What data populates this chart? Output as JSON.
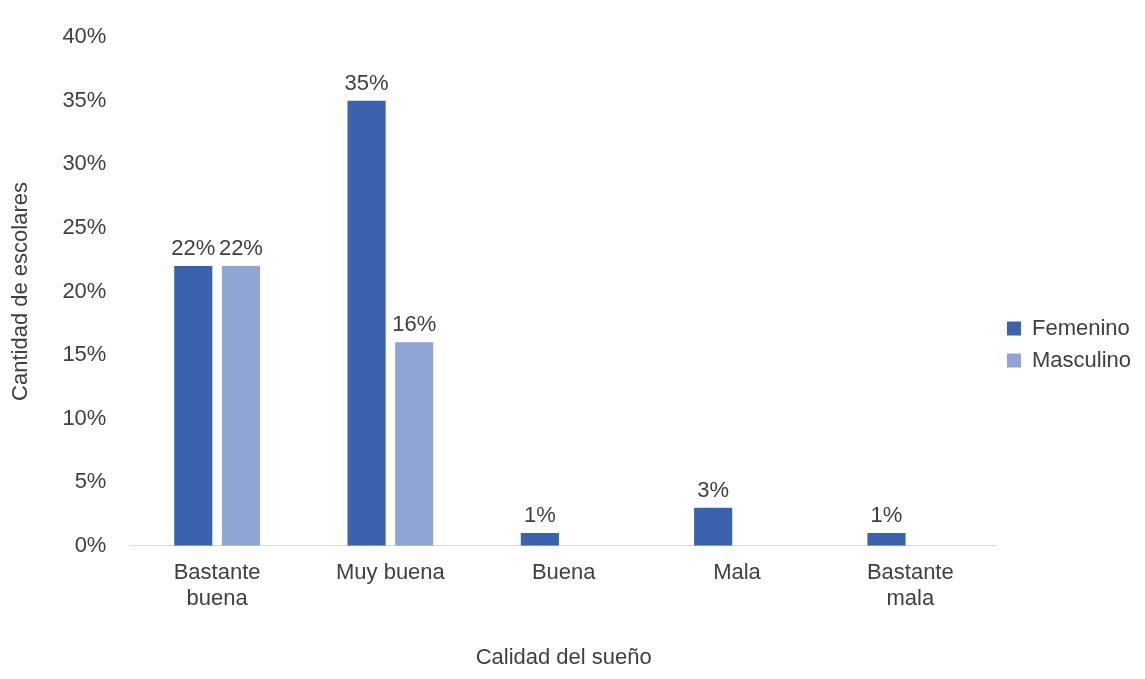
{
  "chart_data": {
    "type": "bar",
    "xlabel": "Calidad del sueño",
    "ylabel": "Cantidad de escolares",
    "categories": [
      "Bastante buena",
      "Muy buena",
      "Buena",
      "Mala",
      "Bastante mala"
    ],
    "series": [
      {
        "name": "Femenino",
        "color": "#3a62ad",
        "values": [
          22,
          35,
          1,
          3,
          1
        ],
        "value_labels": [
          "22%",
          "35%",
          "1%",
          "3%",
          "1%"
        ]
      },
      {
        "name": "Masculino",
        "color": "#8fa5d4",
        "values": [
          22,
          16,
          null,
          null,
          null
        ],
        "value_labels": [
          "22%",
          "16%",
          null,
          null,
          null
        ]
      }
    ],
    "ylim": [
      0,
      40
    ],
    "yticks": [
      {
        "value": 0,
        "label": "0%"
      },
      {
        "value": 5,
        "label": "5%"
      },
      {
        "value": 10,
        "label": "10%"
      },
      {
        "value": 15,
        "label": "15%"
      },
      {
        "value": 20,
        "label": "20%"
      },
      {
        "value": 25,
        "label": "25%"
      },
      {
        "value": 30,
        "label": "30%"
      },
      {
        "value": 35,
        "label": "35%"
      },
      {
        "value": 40,
        "label": "40%"
      }
    ],
    "legend": "right",
    "grid": false
  }
}
